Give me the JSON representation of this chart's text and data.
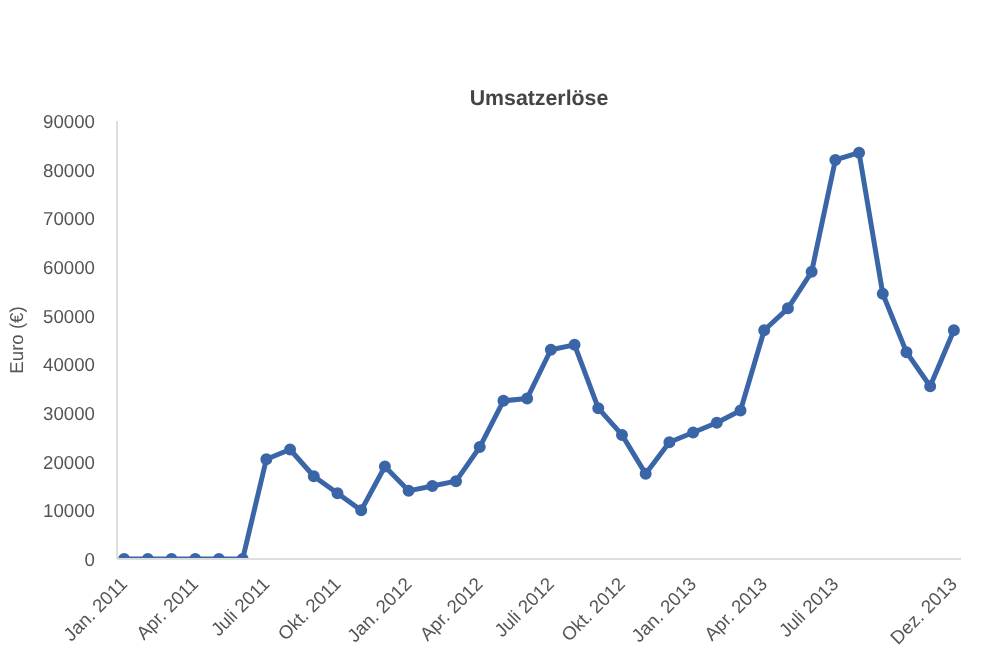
{
  "chart_data": {
    "type": "line",
    "title": "Umsatzerlöse",
    "ylabel": "Euro (€)",
    "categories": [
      "Jan. 2011",
      null,
      null,
      "Apr. 2011",
      null,
      null,
      "Juli 2011",
      null,
      null,
      "Okt. 2011",
      null,
      null,
      "Jan. 2012",
      null,
      null,
      "Apr. 2012",
      null,
      null,
      "Juli 2012",
      null,
      null,
      "Okt. 2012",
      null,
      null,
      "Jan. 2013",
      null,
      null,
      "Apr. 2013",
      null,
      null,
      "Juli 2013",
      null,
      null,
      null,
      null,
      "Dez. 2013"
    ],
    "series": [
      {
        "color": "#3a66a8",
        "values": [
          0,
          0,
          0,
          0,
          0,
          0,
          20500,
          22500,
          17000,
          13500,
          10000,
          19000,
          14000,
          15000,
          16000,
          23000,
          32500,
          33000,
          43000,
          44000,
          31000,
          25500,
          17500,
          24000,
          26000,
          28000,
          30500,
          47000,
          51500,
          59000,
          82000,
          83500,
          54500,
          42500,
          35500,
          47000
        ]
      }
    ],
    "ylim": [
      0,
      90000
    ],
    "yticks": [
      0,
      10000,
      20000,
      30000,
      40000,
      50000,
      60000,
      70000,
      80000,
      90000
    ],
    "grid": false,
    "marker": "circle",
    "line_style": "solid"
  }
}
